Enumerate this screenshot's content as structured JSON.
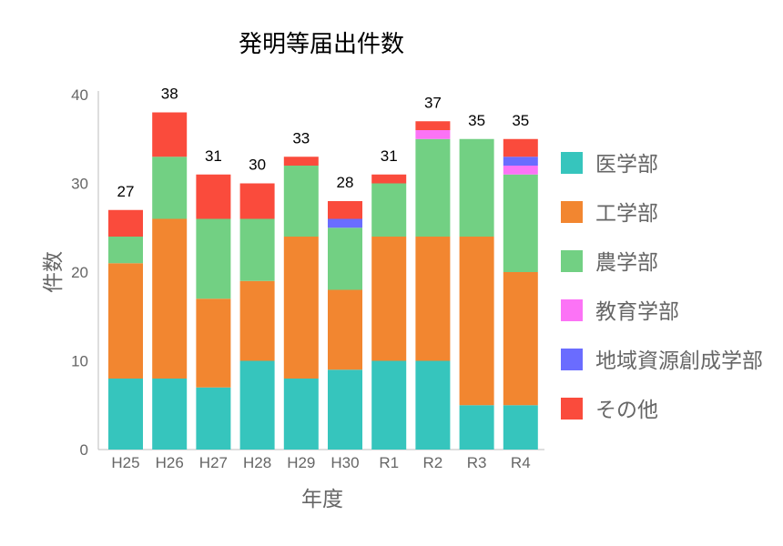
{
  "chart_data": {
    "type": "bar",
    "stacked": true,
    "title": "発明等届出件数",
    "xlabel": "年度",
    "ylabel": "件数",
    "ylim": [
      0,
      40
    ],
    "yticks": [
      0,
      10,
      20,
      30,
      40
    ],
    "categories": [
      "H25",
      "H26",
      "H27",
      "H28",
      "H29",
      "H30",
      "R1",
      "R2",
      "R3",
      "R4"
    ],
    "series": [
      {
        "name": "医学部",
        "color": "#36c5bd",
        "values": [
          8,
          8,
          7,
          10,
          8,
          9,
          10,
          10,
          5,
          5
        ]
      },
      {
        "name": "工学部",
        "color": "#f28630",
        "values": [
          13,
          18,
          10,
          9,
          16,
          9,
          14,
          14,
          19,
          15
        ]
      },
      {
        "name": "農学部",
        "color": "#72d083",
        "values": [
          3,
          7,
          9,
          7,
          8,
          7,
          6,
          11,
          11,
          11
        ]
      },
      {
        "name": "教育学部",
        "color": "#fc73f6",
        "values": [
          0,
          0,
          0,
          0,
          0,
          0,
          0,
          1,
          0,
          1
        ]
      },
      {
        "name": "地域資源創成学部",
        "color": "#6a6cff",
        "values": [
          0,
          0,
          0,
          0,
          0,
          1,
          0,
          0,
          0,
          1
        ]
      },
      {
        "name": "その他",
        "color": "#fa4b3c",
        "values": [
          3,
          5,
          5,
          4,
          1,
          2,
          1,
          1,
          0,
          2
        ]
      }
    ],
    "totals": [
      27,
      38,
      31,
      30,
      33,
      28,
      31,
      37,
      35,
      35
    ],
    "legend_position": "right"
  }
}
